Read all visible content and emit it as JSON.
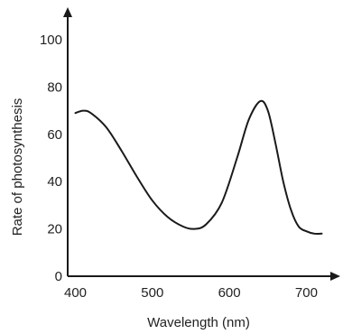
{
  "chart_data": {
    "type": "line",
    "title": "",
    "xlabel": "Wavelength (nm)",
    "ylabel": "Rate of photosynthesis",
    "xlim": [
      390,
      730
    ],
    "ylim": [
      0,
      100
    ],
    "x_ticks": [
      400,
      500,
      600,
      700
    ],
    "y_ticks": [
      0,
      20,
      40,
      60,
      80,
      100
    ],
    "x_tick_labels": [
      "400",
      "500",
      "600",
      "700"
    ],
    "y_tick_labels": [
      "0",
      "20",
      "40",
      "60",
      "80",
      "100"
    ],
    "grid": false,
    "legend": "none",
    "line_color": "#1a1a1a",
    "series": [
      {
        "x": [
          400,
          410,
          420,
          440,
          460,
          480,
          500,
          520,
          540,
          555,
          570,
          590,
          610,
          625,
          640,
          650,
          660,
          670,
          680,
          690,
          700,
          710,
          720
        ],
        "y": [
          69,
          70,
          69,
          63,
          53,
          42,
          32,
          25,
          21,
          20,
          22,
          31,
          50,
          66,
          74,
          70,
          56,
          40,
          28,
          21,
          19,
          18,
          18
        ]
      }
    ]
  }
}
